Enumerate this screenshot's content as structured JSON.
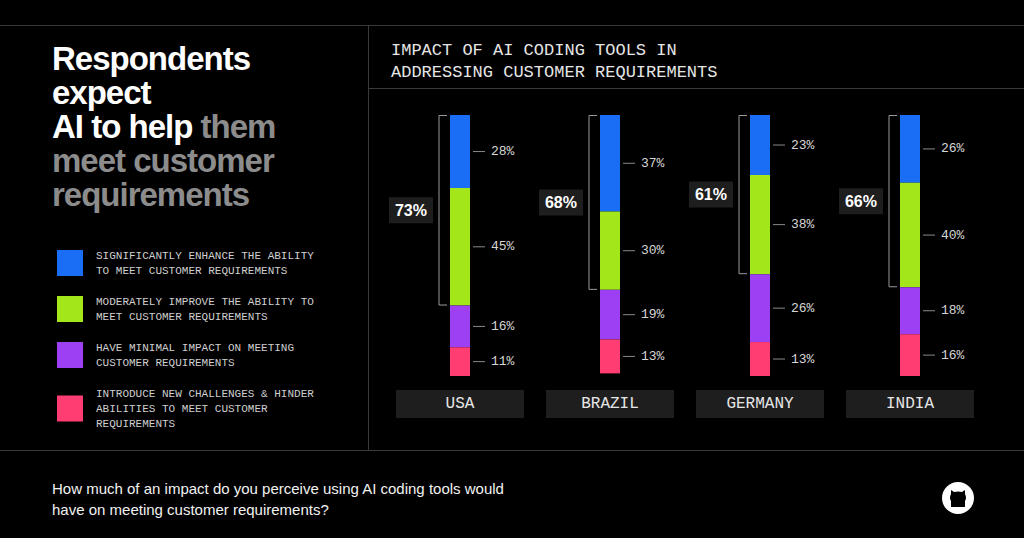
{
  "headline": [
    [
      {
        "text": "Respondents",
        "color": "#ffffff"
      }
    ],
    [
      {
        "text": "expect",
        "color": "#ffffff"
      }
    ],
    [
      {
        "text": "AI to help",
        "color": "#ffffff"
      },
      {
        "text": "them",
        "color": "#8c8c8c"
      }
    ],
    [
      {
        "text": "meet customer",
        "color": "#8c8c8c"
      }
    ],
    [
      {
        "text": "requirements",
        "color": "#8c8c8c"
      }
    ]
  ],
  "question": "How much of an impact do you perceive using AI coding tools would have on meeting customer requirements?",
  "chart_data": {
    "type": "bar",
    "title": "IMPACT OF AI CODING TOOLS IN ADDRESSING CUSTOMER REQUIREMENTS",
    "categories": [
      "USA",
      "BRAZIL",
      "GERMANY",
      "INDIA"
    ],
    "series": [
      {
        "name": "SIGNIFICANTLY ENHANCE THE ABILITY TO MEET CUSTOMER REQUIREMENTS",
        "color": "#1a6ef5",
        "values": [
          28,
          37,
          23,
          26
        ],
        "value_labels": [
          "28%",
          "37%",
          "23%",
          "26%"
        ]
      },
      {
        "name": "MODERATELY IMPROVE THE ABILITY TO MEET CUSTOMER REQUIREMENTS",
        "color": "#a3e61a",
        "values": [
          45,
          30,
          38,
          40
        ],
        "value_labels": [
          "45%",
          "30%",
          "38%",
          "40%"
        ]
      },
      {
        "name": "HAVE MINIMAL IMPACT ON MEETING CUSTOMER REQUIREMENTS",
        "color": "#9d3ff2",
        "values": [
          16,
          19,
          26,
          18
        ],
        "value_labels": [
          "16%",
          "19%",
          "26%",
          "18%"
        ]
      },
      {
        "name": "INTRODUCE NEW CHALLENGES & HINDER ABILITIES TO MEET CUSTOMER REQUIREMENTS",
        "color": "#ff3d72",
        "values": [
          11,
          13,
          13,
          16
        ],
        "value_labels": [
          "11%",
          "13%",
          "13%",
          "16%"
        ]
      }
    ],
    "totals": {
      "values": [
        73,
        68,
        61,
        66
      ],
      "value_labels": [
        "73%",
        "68%",
        "61%",
        "66%"
      ]
    },
    "ylim": [
      0,
      100
    ],
    "stacked": true,
    "data_labels": true,
    "tick_labels": "x",
    "legend": "left"
  }
}
